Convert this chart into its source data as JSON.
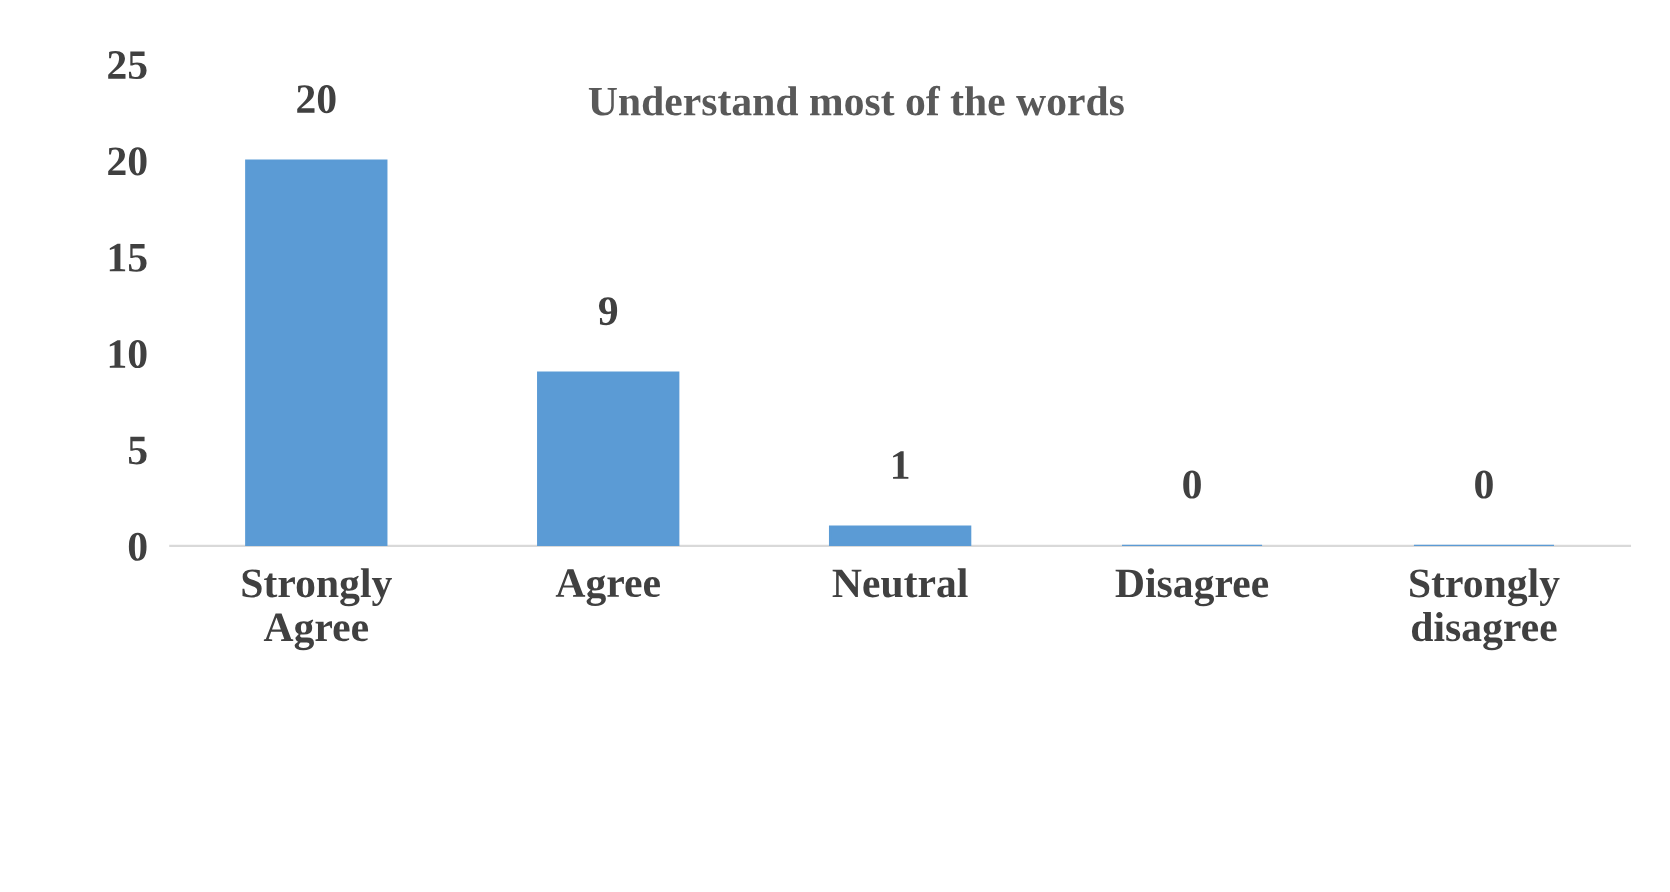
{
  "chart_data": {
    "type": "bar",
    "title": "Understand most of the words",
    "categories": [
      "Strongly Agree",
      "Agree",
      "Neutral",
      "Disagree",
      "Strongly disagree"
    ],
    "values": [
      20,
      9,
      1,
      0,
      0
    ],
    "color": "#5b9bd5",
    "ylim": [
      0,
      25
    ],
    "yticks": [
      0,
      5,
      10,
      15,
      20,
      25
    ],
    "data_labels": true,
    "grid": false,
    "legend": false
  }
}
